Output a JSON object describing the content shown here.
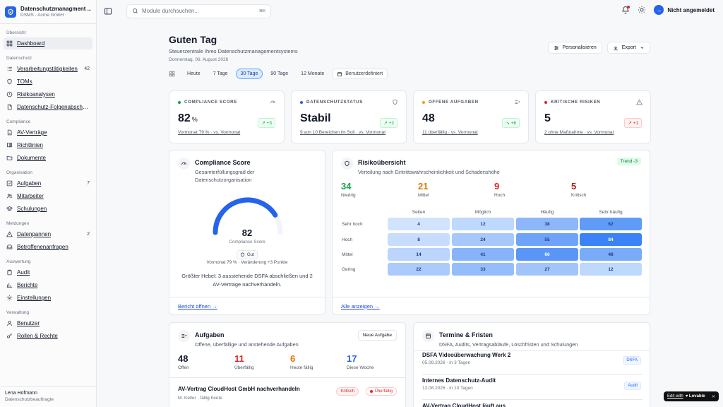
{
  "sidebar": {
    "brand_name": "Datenschutzmanagment ...",
    "brand_sub": "DSMS · Acme GmbH",
    "sections": [
      {
        "title": "Übersicht",
        "items": [
          {
            "label": "Dashboard",
            "icon": "grid-icon",
            "active": true
          }
        ]
      },
      {
        "title": "Datenschutz",
        "items": [
          {
            "label": "Verarbeitungstätigkeiten",
            "icon": "list-icon",
            "count": "42"
          },
          {
            "label": "TOMs",
            "icon": "shield-icon"
          },
          {
            "label": "Risikoanalysen",
            "icon": "alert-circle-icon"
          },
          {
            "label": "Datenschutz-Folgenabschät...",
            "icon": "file-icon"
          }
        ]
      },
      {
        "title": "Compliance",
        "items": [
          {
            "label": "AV-Verträge",
            "icon": "file-signature-icon"
          },
          {
            "label": "Richtlinien",
            "icon": "book-icon"
          },
          {
            "label": "Dokumente",
            "icon": "folder-icon"
          }
        ]
      },
      {
        "title": "Organisation",
        "items": [
          {
            "label": "Aufgaben",
            "icon": "check-square-icon",
            "count": "7"
          },
          {
            "label": "Mitarbeiter",
            "icon": "users-icon"
          },
          {
            "label": "Schulungen",
            "icon": "graduation-cap-icon"
          }
        ]
      },
      {
        "title": "Meldungen",
        "items": [
          {
            "label": "Datenpannen",
            "icon": "alert-triangle-icon",
            "count": "2"
          },
          {
            "label": "Betroffenenanfragen",
            "icon": "inbox-icon"
          }
        ]
      },
      {
        "title": "Auswertung",
        "items": [
          {
            "label": "Audit",
            "icon": "clipboard-icon"
          },
          {
            "label": "Berichte",
            "icon": "bar-chart-icon"
          },
          {
            "label": "Einstellungen",
            "icon": "gear-icon"
          }
        ]
      },
      {
        "title": "Verwaltung",
        "items": [
          {
            "label": "Benutzer",
            "icon": "user-icon"
          },
          {
            "label": "Rollen & Rechte",
            "icon": "key-icon"
          }
        ]
      }
    ],
    "user_name": "Lena Hofmann",
    "user_role": "Datenschutzbeauftragte"
  },
  "topbar": {
    "search_placeholder": "Module durchsuchen...",
    "search_shortcut": "⌘K",
    "login_label": "Nicht angemeldet"
  },
  "header": {
    "greeting": "Guten Tag",
    "subtitle": "Steuerzentrale Ihres Datenschutzmanagementsystems",
    "date": "Donnerstag, 06. August 2026",
    "personalize_label": "Personalisieren",
    "export_label": "Export",
    "ranges": [
      "Heute",
      "7 Tage",
      "30 Tage",
      "90 Tage",
      "12 Monate"
    ],
    "selected_range": 2,
    "custom_label": "Benutzerdefiniert"
  },
  "kpis": [
    {
      "label": "COMPLIANCE SCORE",
      "value": "82",
      "unit": "%",
      "delta": "↗ +3",
      "foot": "Vormonat 79 % · vs. Vormonat",
      "color": "#16a34a",
      "tone": "green"
    },
    {
      "label": "DATENSCHUTZSTATUS",
      "value": "Stabil",
      "unit": "",
      "delta": "↗ +2",
      "foot": "9 von 10 Bereichen im Soll · vs. Vormonat",
      "color": "#2563eb",
      "tone": "green"
    },
    {
      "label": "OFFENE AUFGABEN",
      "value": "48",
      "unit": "",
      "delta": "↘ +6",
      "foot": "11 überfällig · vs. Vormonat",
      "color": "#f59e0b",
      "tone": "green"
    },
    {
      "label": "KRITISCHE RISIKEN",
      "value": "5",
      "unit": "",
      "delta": "↗ +1",
      "foot": "2 ohne Maßnahme · vs. Vormonat",
      "color": "#dc2626",
      "tone": "red"
    }
  ],
  "compliance": {
    "title": "Compliance Score",
    "subtitle": "Gesamterfüllungsgrad der Datenschutzorganisation",
    "score": "82",
    "score_fraction": 0.82,
    "score_label": "Compliance Score",
    "badge": "Gut",
    "meta": "Vormonat 79 % · Veränderung +3 Punkte",
    "tip": "Größter Hebel: 3 ausstehende DSFA abschließen und 2 AV-Verträge nachverhandeln.",
    "link": "Bericht öffnen →"
  },
  "risk": {
    "title": "Risikoübersicht",
    "subtitle": "Verteilung nach Eintrittswahrscheinlichkeit und Schadenshöhe",
    "trend": "Trend -3",
    "stats": [
      {
        "n": "34",
        "l": "Niedrig",
        "color": "#16a34a"
      },
      {
        "n": "21",
        "l": "Mittel",
        "color": "#d97706"
      },
      {
        "n": "9",
        "l": "Hoch",
        "color": "#dc2626"
      },
      {
        "n": "5",
        "l": "Kritisch",
        "color": "#b91c1c"
      }
    ],
    "columns": [
      "Selten",
      "Möglich",
      "Häufig",
      "Sehr häufig"
    ],
    "rows": [
      "Sehr hoch",
      "Hoch",
      "Mittel",
      "Gering"
    ],
    "cells": [
      [
        4,
        12,
        38,
        62
      ],
      [
        8,
        24,
        55,
        84
      ],
      [
        14,
        41,
        66,
        48
      ],
      [
        22,
        33,
        27,
        12
      ]
    ],
    "link": "Alle anzeigen →"
  },
  "tasks": {
    "title": "Aufgaben",
    "subtitle": "Offene, überfällige und anstehende Aufgaben",
    "new_label": "Neue Aufgabe",
    "stats": [
      {
        "n": "48",
        "l": "Offen",
        "color": "#111827"
      },
      {
        "n": "11",
        "l": "Überfällig",
        "color": "#dc2626"
      },
      {
        "n": "6",
        "l": "Heute fällig",
        "color": "#d97706"
      },
      {
        "n": "17",
        "l": "Diese Woche",
        "color": "#2563eb"
      }
    ],
    "item_title": "AV-Vertrag CloudHost GmbH nachverhandeln",
    "item_meta": "M. Keller · fällig heute",
    "item_priority": "Kritisch",
    "item_status": "Überfällig"
  },
  "deadlines": {
    "title": "Termine & Fristen",
    "subtitle": "DSFA, Audits, Vertragsabläufe, Löschfristen und Schulungen",
    "items": [
      {
        "t": "DSFA Videoüberwachung Werk 2",
        "m": "05.08.2026 · in 3 Tagen",
        "b": "DSFA"
      },
      {
        "t": "Internes Datenschutz-Audit",
        "m": "12.08.2026 · in 10 Tagen",
        "b": "Audit"
      },
      {
        "t": "AV-Vertrag CloudHost läuft aus",
        "m": "",
        "b": ""
      }
    ]
  },
  "lovable": {
    "edit": "Edit with",
    "brand": "♥ Lovable",
    "close": "✕"
  }
}
